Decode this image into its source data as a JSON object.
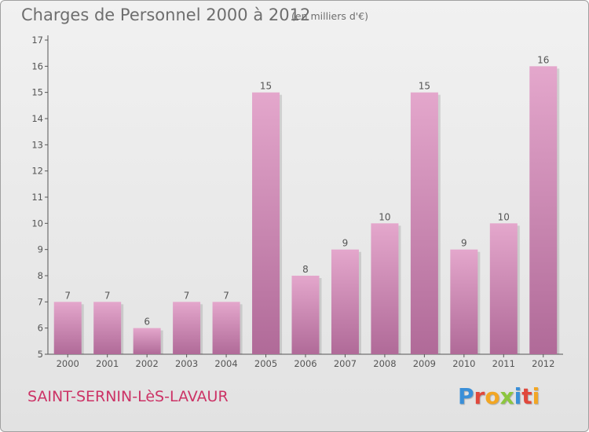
{
  "header": {
    "title": "Charges de Personnel 2000 à 2012",
    "subtitle": "(en milliers d'€)"
  },
  "footer": {
    "commune": "SAINT-SERNIN-LèS-LAVAUR",
    "logo": [
      "P",
      "r",
      "o",
      "x",
      "i",
      "t",
      "i"
    ]
  },
  "colors": {
    "bar_light": "#e4a7cc",
    "bar_dark": "#b06a98",
    "commune": "#cc3366"
  },
  "chart_data": {
    "type": "bar",
    "categories": [
      "2000",
      "2001",
      "2002",
      "2003",
      "2004",
      "2005",
      "2006",
      "2007",
      "2008",
      "2009",
      "2010",
      "2011",
      "2012"
    ],
    "values": [
      7,
      7,
      6,
      7,
      7,
      15,
      8,
      9,
      10,
      15,
      9,
      10,
      16
    ],
    "data_labels": [
      "7",
      "7",
      "6",
      "7",
      "7",
      "15",
      "8",
      "9",
      "10",
      "15",
      "9",
      "10",
      "16"
    ],
    "title": "Charges de Personnel 2000 à 2012",
    "subtitle": "(en milliers d'€)",
    "xlabel": "",
    "ylabel": "",
    "ylim": [
      5,
      17
    ],
    "yticks": [
      "5",
      "6",
      "7",
      "8",
      "9",
      "10",
      "11",
      "12",
      "13",
      "14",
      "15",
      "16",
      "17"
    ],
    "grid": false,
    "legend": "none"
  }
}
